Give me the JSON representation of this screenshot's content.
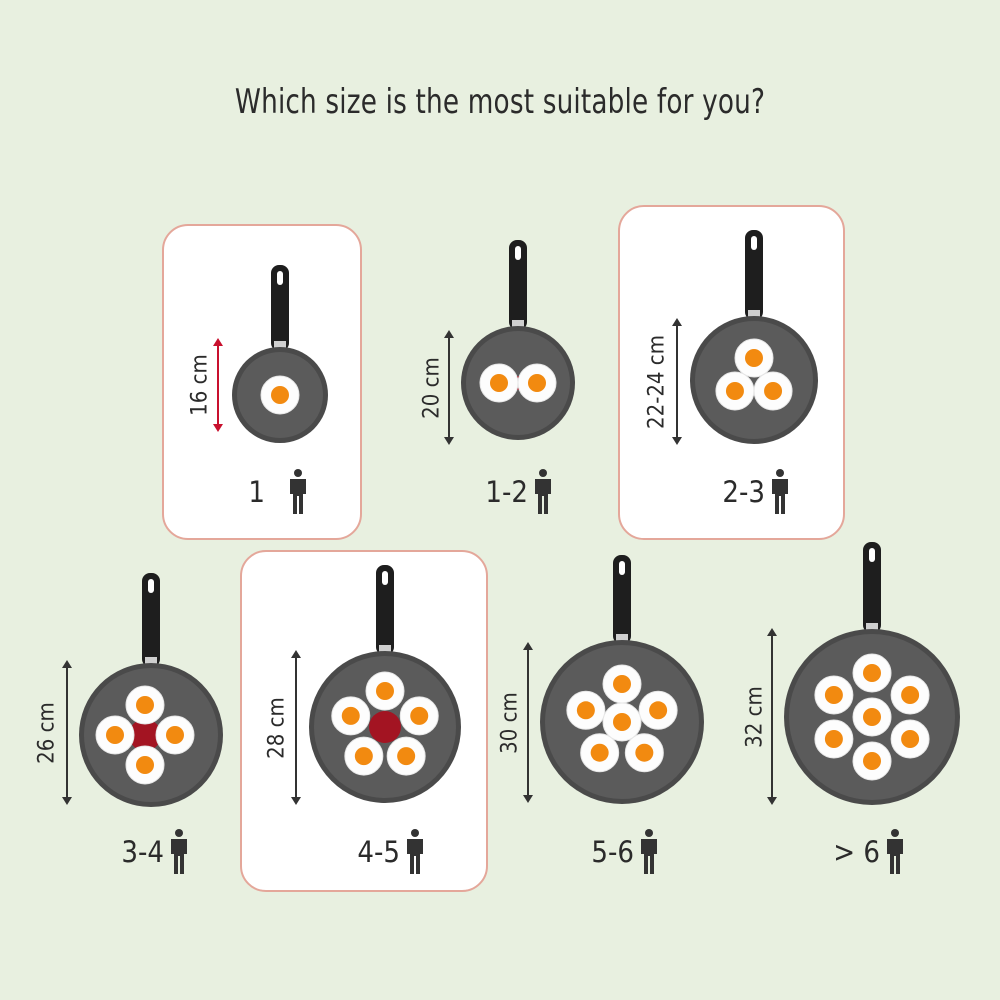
{
  "title": "Which size is the most suitable for you?",
  "colors": {
    "background": "#e8f0e0",
    "card_border": "#e4a79a",
    "pan": "#5b5b5b",
    "handle": "#1e1e1e",
    "yolk": "#f28a10",
    "arrow_highlight": "#c8102e",
    "arrow": "#333333"
  },
  "pans": [
    {
      "size": "16 cm",
      "people": "1",
      "eggs": 1,
      "highlighted": true,
      "icon": "person-icon"
    },
    {
      "size": "20 cm",
      "people": "1-2",
      "eggs": 2,
      "highlighted": false,
      "icon": "person-icon"
    },
    {
      "size": "22-24 cm",
      "people": "2-3",
      "eggs": 3,
      "highlighted": true,
      "icon": "person-icon"
    },
    {
      "size": "26 cm",
      "people": "3-4",
      "eggs": 4,
      "highlighted": false,
      "icon": "person-icon"
    },
    {
      "size": "28 cm",
      "people": "4-5",
      "eggs": 5,
      "highlighted": true,
      "icon": "person-icon"
    },
    {
      "size": "30 cm",
      "people": "5-6",
      "eggs": 6,
      "highlighted": false,
      "icon": "person-icon"
    },
    {
      "size": "32 cm",
      "people": "> 6",
      "eggs": 7,
      "highlighted": false,
      "icon": "person-icon"
    }
  ]
}
